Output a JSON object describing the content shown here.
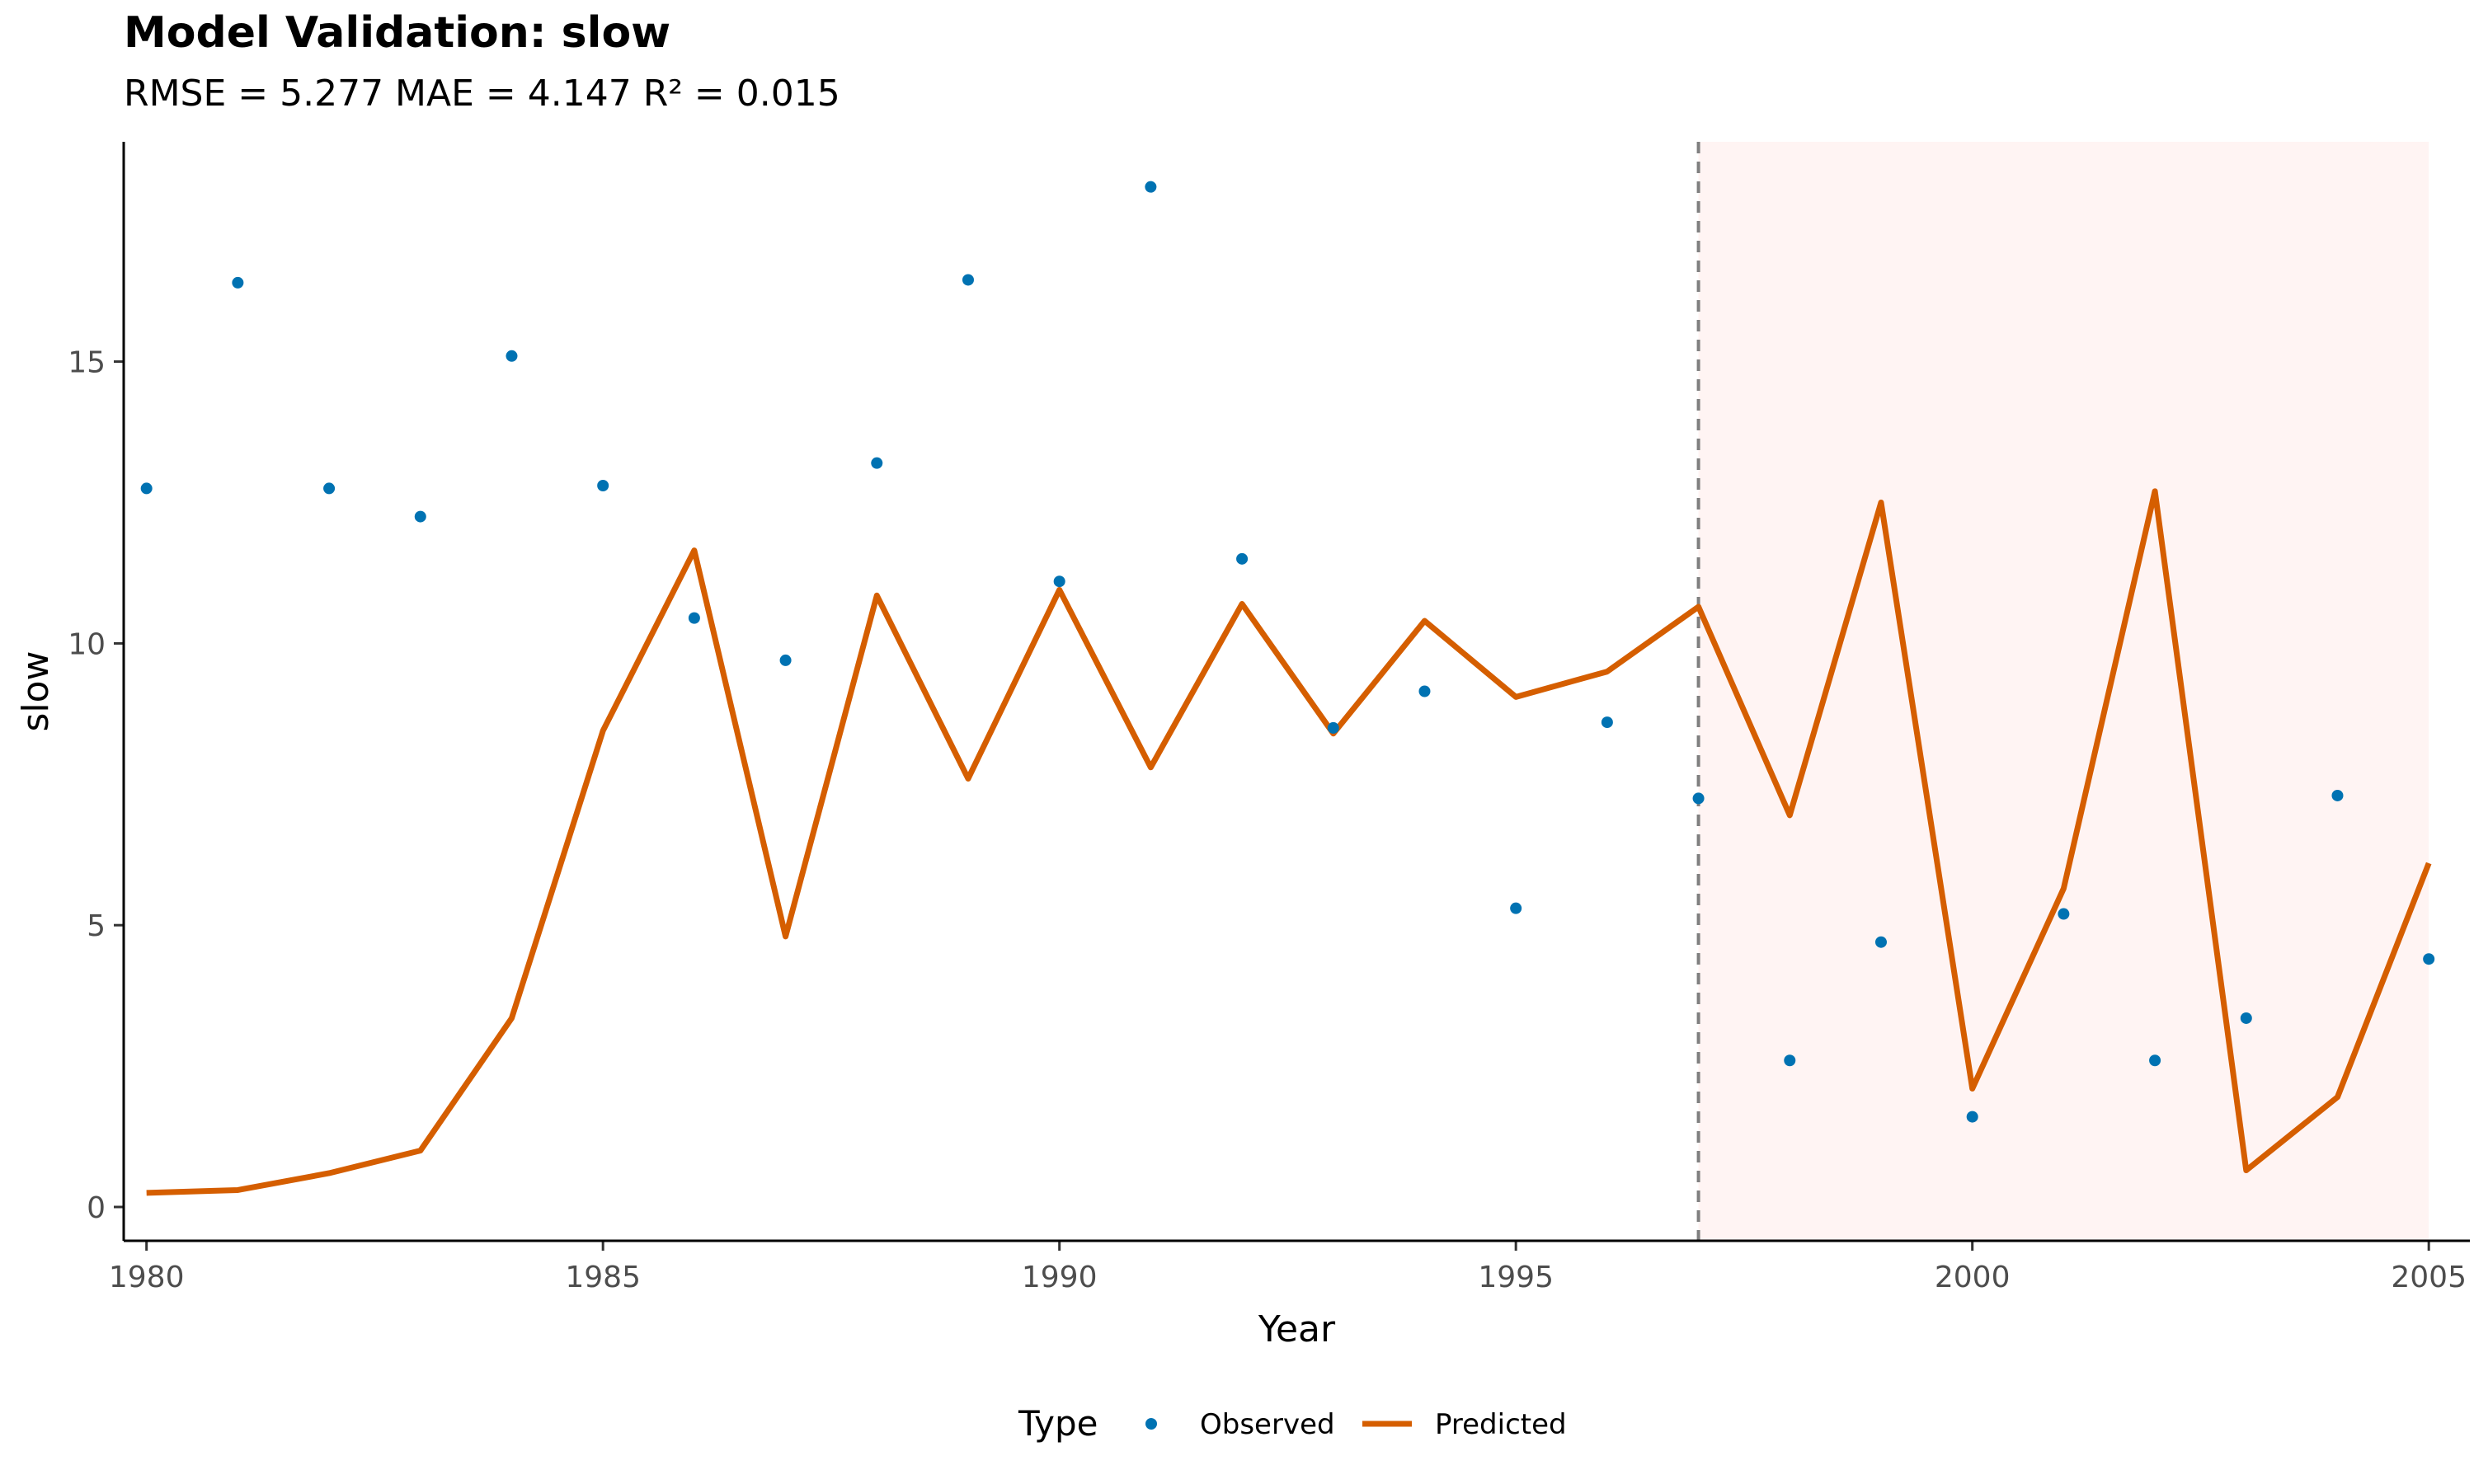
{
  "chart_data": {
    "type": "line",
    "title": "Model Validation: slow",
    "subtitle": "RMSE = 5.277 MAE = 4.147 R² = 0.015",
    "xlabel": "Year",
    "ylabel": "slow",
    "xlim": [
      1979.75,
      2005.45
    ],
    "ylim": [
      -0.6,
      18.9
    ],
    "x_ticks": [
      1980,
      1985,
      1990,
      1995,
      2000,
      2005
    ],
    "y_ticks": [
      0,
      5,
      10,
      15
    ],
    "grid": false,
    "validation_start": 1997,
    "validation_end": 2005,
    "legend": {
      "title": "Type",
      "position": "bottom",
      "items": [
        {
          "label": "Observed",
          "kind": "point"
        },
        {
          "label": "Predicted",
          "kind": "line"
        }
      ]
    },
    "colors": {
      "observed": "#0072B2",
      "predicted": "#D55E00",
      "validation_band": "#FFF4F3",
      "cutoff_line": "#7F7F7F"
    },
    "x": [
      1980,
      1981,
      1982,
      1983,
      1984,
      1985,
      1986,
      1987,
      1988,
      1989,
      1990,
      1991,
      1992,
      1993,
      1994,
      1995,
      1996,
      1997,
      1998,
      1999,
      2000,
      2001,
      2002,
      2003,
      2004,
      2005
    ],
    "series": [
      {
        "name": "Observed",
        "values": [
          12.75,
          16.4,
          12.75,
          12.25,
          15.1,
          12.8,
          10.45,
          9.7,
          13.2,
          16.45,
          11.1,
          18.1,
          11.5,
          8.5,
          9.15,
          5.3,
          8.6,
          7.25,
          2.6,
          4.7,
          1.6,
          5.2,
          2.6,
          3.35,
          7.3,
          4.4
        ]
      },
      {
        "name": "Predicted",
        "values": [
          0.25,
          0.3,
          0.6,
          1.0,
          3.35,
          8.45,
          11.65,
          4.8,
          10.85,
          7.6,
          10.95,
          7.8,
          10.7,
          8.4,
          10.4,
          9.05,
          9.5,
          10.65,
          6.95,
          12.5,
          2.1,
          5.65,
          12.7,
          0.65,
          1.95,
          6.1
        ]
      }
    ]
  }
}
